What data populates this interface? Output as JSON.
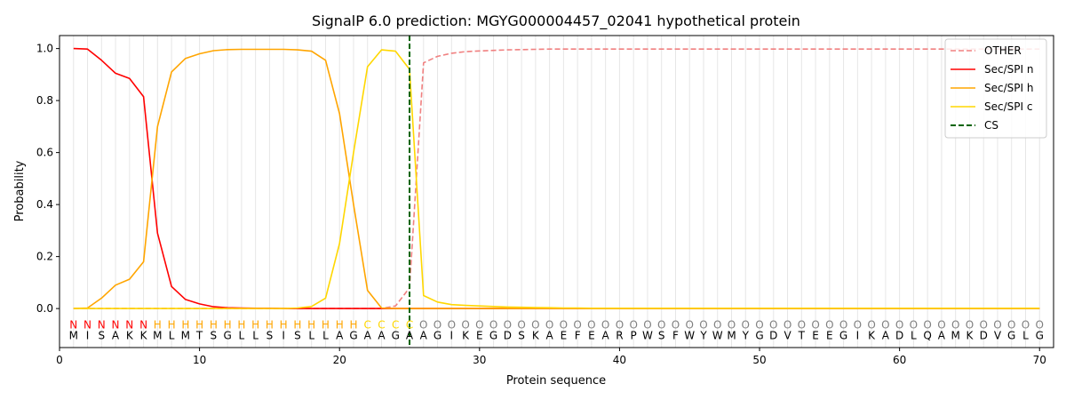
{
  "chart_data": {
    "type": "line",
    "title": "SignalP 6.0 prediction: MGYG000004457_02041 hypothetical protein",
    "xlabel": "Protein sequence",
    "ylabel": "Probability",
    "xlim": [
      0,
      71
    ],
    "ylim": [
      -0.15,
      1.05
    ],
    "xticks": [
      0,
      10,
      20,
      30,
      40,
      50,
      60,
      70
    ],
    "yticks": [
      0.0,
      0.2,
      0.4,
      0.6,
      0.8,
      1.0
    ],
    "legend_position": "top-right",
    "sequence": [
      "M",
      "I",
      "S",
      "A",
      "K",
      "K",
      "M",
      "L",
      "M",
      "T",
      "S",
      "G",
      "L",
      "L",
      "S",
      "I",
      "S",
      "L",
      "L",
      "A",
      "G",
      "A",
      "A",
      "G",
      "A",
      "A",
      "G",
      "I",
      "K",
      "E",
      "G",
      "D",
      "S",
      "K",
      "A",
      "E",
      "F",
      "E",
      "A",
      "R",
      "P",
      "W",
      "S",
      "F",
      "W",
      "Y",
      "W",
      "M",
      "Y",
      "G",
      "D",
      "V",
      "T",
      "E",
      "E",
      "G",
      "I",
      "K",
      "A",
      "D",
      "L",
      "Q",
      "A",
      "M",
      "K",
      "D",
      "V",
      "G",
      "L",
      "G"
    ],
    "region_labels": [
      "N",
      "N",
      "N",
      "N",
      "N",
      "N",
      "H",
      "H",
      "H",
      "H",
      "H",
      "H",
      "H",
      "H",
      "H",
      "H",
      "H",
      "H",
      "H",
      "H",
      "H",
      "C",
      "C",
      "C",
      "C",
      "O",
      "O",
      "O",
      "O",
      "O",
      "O",
      "O",
      "O",
      "O",
      "O",
      "O",
      "O",
      "O",
      "O",
      "O",
      "O",
      "O",
      "O",
      "O",
      "O",
      "O",
      "O",
      "O",
      "O",
      "O",
      "O",
      "O",
      "O",
      "O",
      "O",
      "O",
      "O",
      "O",
      "O",
      "O",
      "O",
      "O",
      "O",
      "O",
      "O",
      "O",
      "O",
      "O",
      "O",
      "O"
    ],
    "region_colors": {
      "N": "#ff0000",
      "H": "#ffa500",
      "C": "#ffd700",
      "O": "#808080"
    },
    "cleavage_site": 25,
    "series": [
      {
        "name": "OTHER",
        "color": "#f08080",
        "dash": "dashed",
        "values": [
          0,
          0,
          0,
          0,
          0,
          0,
          0,
          0,
          0,
          0,
          0,
          0,
          0,
          0,
          0,
          0,
          0,
          0,
          0,
          0,
          0,
          0,
          0,
          0.01,
          0.08,
          0.945,
          0.97,
          0.982,
          0.988,
          0.991,
          0.993,
          0.995,
          0.996,
          0.997,
          0.998,
          0.998,
          0.998,
          0.998,
          0.998,
          0.998,
          0.998,
          0.998,
          0.998,
          0.998,
          0.998,
          0.998,
          0.998,
          0.998,
          0.998,
          0.998,
          0.998,
          0.998,
          0.998,
          0.998,
          0.998,
          0.998,
          0.998,
          0.998,
          0.998,
          0.998,
          0.998,
          0.998,
          0.998,
          0.998,
          0.998,
          0.998,
          0.998,
          0.998,
          0.998,
          0.998
        ]
      },
      {
        "name": "Sec/SPI n",
        "color": "#ff0000",
        "dash": "solid",
        "values": [
          1.0,
          0.998,
          0.955,
          0.905,
          0.885,
          0.815,
          0.29,
          0.085,
          0.035,
          0.018,
          0.007,
          0.003,
          0.002,
          0.001,
          0.001,
          0,
          0,
          0,
          0,
          0,
          0,
          0,
          0,
          0,
          0,
          0,
          0,
          0,
          0,
          0,
          0,
          0,
          0,
          0,
          0,
          0,
          0,
          0,
          0,
          0,
          0,
          0,
          0,
          0,
          0,
          0,
          0,
          0,
          0,
          0,
          0,
          0,
          0,
          0,
          0,
          0,
          0,
          0,
          0,
          0,
          0,
          0,
          0,
          0,
          0,
          0,
          0,
          0,
          0,
          0
        ]
      },
      {
        "name": "Sec/SPI h",
        "color": "#ffa500",
        "dash": "solid",
        "values": [
          0,
          0.002,
          0.04,
          0.09,
          0.113,
          0.18,
          0.7,
          0.91,
          0.962,
          0.98,
          0.992,
          0.996,
          0.997,
          0.997,
          0.997,
          0.997,
          0.995,
          0.99,
          0.955,
          0.75,
          0.4,
          0.07,
          0.002,
          0,
          0,
          0,
          0,
          0,
          0,
          0,
          0,
          0,
          0,
          0,
          0,
          0,
          0,
          0,
          0,
          0,
          0,
          0,
          0,
          0,
          0,
          0,
          0,
          0,
          0,
          0,
          0,
          0,
          0,
          0,
          0,
          0,
          0,
          0,
          0,
          0,
          0,
          0,
          0,
          0,
          0,
          0,
          0,
          0,
          0,
          0
        ]
      },
      {
        "name": "Sec/SPI c",
        "color": "#ffd700",
        "dash": "solid",
        "values": [
          0,
          0,
          0,
          0,
          0,
          0,
          0,
          0,
          0,
          0,
          0,
          0,
          0,
          0,
          0,
          0,
          0.002,
          0.008,
          0.04,
          0.25,
          0.6,
          0.93,
          0.995,
          0.99,
          0.92,
          0.05,
          0.025,
          0.015,
          0.012,
          0.01,
          0.008,
          0.006,
          0.005,
          0.004,
          0.003,
          0.002,
          0.002,
          0.001,
          0.001,
          0.001,
          0.001,
          0.001,
          0.001,
          0.001,
          0.001,
          0.001,
          0.001,
          0.001,
          0.001,
          0.001,
          0.001,
          0.001,
          0.001,
          0.001,
          0.001,
          0.001,
          0.001,
          0.001,
          0.001,
          0.001,
          0.001,
          0.001,
          0.001,
          0.001,
          0.001,
          0.001,
          0.001,
          0.001,
          0.001,
          0.001
        ]
      },
      {
        "name": "CS",
        "color": "#006400",
        "dash": "dashed",
        "vertical_at": 25
      }
    ]
  }
}
